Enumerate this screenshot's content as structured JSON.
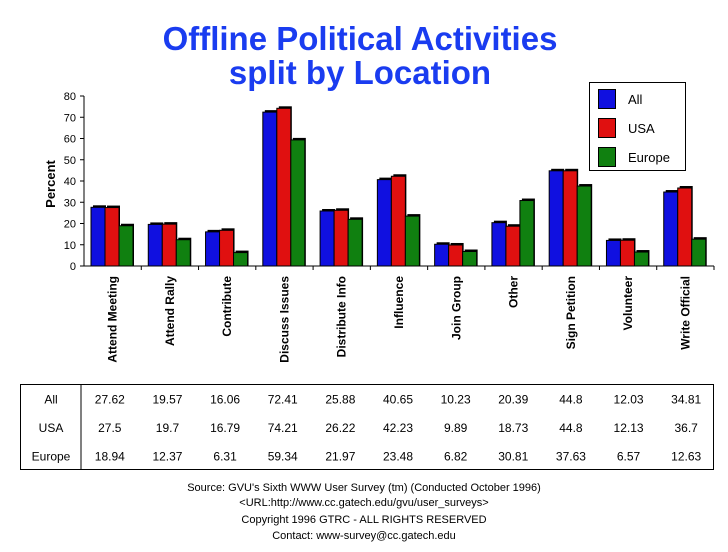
{
  "chart_data": {
    "type": "bar",
    "title_line1": "Offline Political Activities",
    "title_line2": "split by Location",
    "ylabel": "Percent",
    "ylim": [
      0,
      80
    ],
    "yticks": [
      0,
      10,
      20,
      30,
      40,
      50,
      60,
      70,
      80
    ],
    "categories": [
      "Attend Meeting",
      "Attend Rally",
      "Contribute",
      "Discuss Issues",
      "Distribute Info",
      "Influence",
      "Join Group",
      "Other",
      "Sign Petition",
      "Volunteer",
      "Write Official"
    ],
    "series": [
      {
        "name": "All",
        "color": "#1010e0",
        "values": [
          27.62,
          19.57,
          16.06,
          72.41,
          25.88,
          40.65,
          10.23,
          20.39,
          44.8,
          12.03,
          34.81
        ],
        "labels": [
          "27.62",
          "19.57",
          "16.06",
          "72.41",
          "25.88",
          "40.65",
          "10.23",
          "20.39",
          "44.8",
          "12.03",
          "34.81"
        ]
      },
      {
        "name": "USA",
        "color": "#e01010",
        "values": [
          27.5,
          19.7,
          16.79,
          74.21,
          26.22,
          42.23,
          9.89,
          18.73,
          44.8,
          12.13,
          36.7
        ],
        "labels": [
          "27.5",
          "19.7",
          "16.79",
          "74.21",
          "26.22",
          "42.23",
          "9.89",
          "18.73",
          "44.8",
          "12.13",
          "36.7"
        ]
      },
      {
        "name": "Europe",
        "color": "#108010",
        "values": [
          18.94,
          12.37,
          6.31,
          59.34,
          21.97,
          23.48,
          6.82,
          30.81,
          37.63,
          6.57,
          12.63
        ],
        "labels": [
          "18.94",
          "12.37",
          "6.31",
          "59.34",
          "21.97",
          "23.48",
          "6.82",
          "30.81",
          "37.63",
          "6.57",
          "12.63"
        ]
      }
    ],
    "legend_position": "top-right",
    "grid": false
  },
  "footer": {
    "line1": "Source: GVU's Sixth WWW User Survey (tm) (Conducted October 1996)",
    "line2": "<URL:http://www.cc.gatech.edu/gvu/user_surveys>",
    "line3": "Copyright 1996 GTRC - ALL RIGHTS RESERVED",
    "line4": "Contact: www-survey@cc.gatech.edu"
  }
}
